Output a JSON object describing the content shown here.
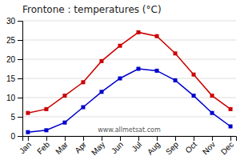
{
  "chart_data": {
    "type": "line",
    "title": "Frontone : temperatures (°C)",
    "categories": [
      "Jan",
      "Feb",
      "Mar",
      "Apr",
      "May",
      "Jun",
      "Jul",
      "Aug",
      "Sep",
      "Oct",
      "Nov",
      "Dec"
    ],
    "series": [
      {
        "color": "#cc0000",
        "values": [
          6.0,
          7.0,
          10.5,
          14.0,
          19.5,
          23.5,
          27.0,
          26.0,
          21.5,
          16.0,
          10.5,
          7.0
        ]
      },
      {
        "color": "#0000cc",
        "values": [
          1.0,
          1.5,
          3.5,
          7.5,
          11.5,
          15.0,
          17.5,
          17.0,
          14.5,
          10.5,
          6.0,
          2.5
        ]
      }
    ],
    "marker": "square",
    "ylim": [
      0,
      30
    ],
    "yticks": [
      0,
      5,
      10,
      15,
      20,
      25,
      30
    ],
    "grid": true,
    "annotations": [
      "www.allmetsat.com"
    ]
  }
}
